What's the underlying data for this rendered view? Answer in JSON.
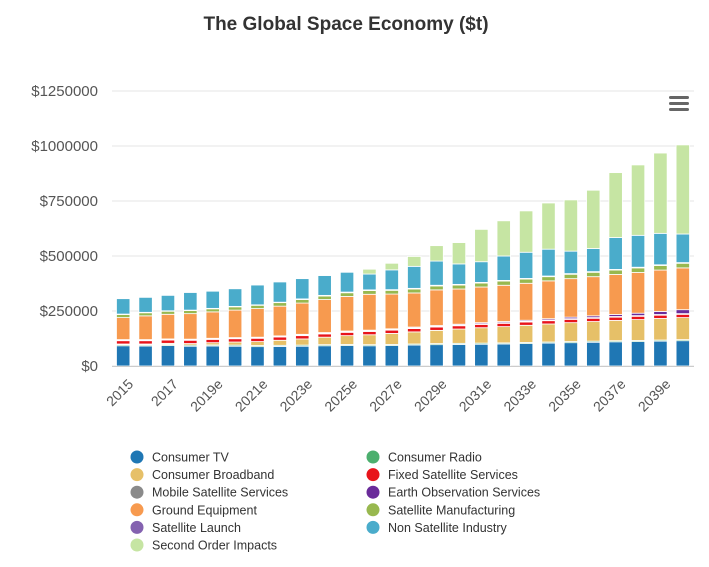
{
  "chart_data": {
    "type": "bar",
    "stacked": true,
    "title": "The Global Space Economy ($t)",
    "xlabel": "",
    "ylabel": "",
    "ylim": [
      0,
      1250000
    ],
    "yticks": [
      0,
      250000,
      500000,
      750000,
      1000000,
      1250000
    ],
    "ytick_labels": [
      "$0",
      "$250000",
      "$500000",
      "$750000",
      "$1000000",
      "$1250000"
    ],
    "grid": true,
    "legend": "bottom",
    "categories": [
      "2015",
      "2016",
      "2017",
      "2018",
      "2019e",
      "2020e",
      "2021e",
      "2022e",
      "2023e",
      "2024e",
      "2025e",
      "2026e",
      "2027e",
      "2028e",
      "2029e",
      "2030e",
      "2031e",
      "2032e",
      "2033e",
      "2034e",
      "2035e",
      "2036e",
      "2037e",
      "2038e",
      "2039e",
      "2040e"
    ],
    "xtick_labels": [
      "2015",
      "",
      "2017",
      "",
      "2019e",
      "",
      "2021e",
      "",
      "2023e",
      "",
      "2025e",
      "",
      "2027e",
      "",
      "2029e",
      "",
      "2031e",
      "",
      "2033e",
      "",
      "2035e",
      "",
      "2037e",
      "",
      "2039e",
      ""
    ],
    "series": [
      {
        "name": "Consumer TV",
        "color": "#1f77b4",
        "values": [
          92000,
          91000,
          93000,
          90000,
          91000,
          90000,
          88000,
          89000,
          90000,
          92000,
          93000,
          92000,
          93000,
          95000,
          97000,
          98000,
          99000,
          100000,
          102000,
          104000,
          106000,
          108000,
          110000,
          111000,
          113000,
          115000
        ]
      },
      {
        "name": "Consumer Radio",
        "color": "#4caf6e",
        "values": [
          5000,
          5000,
          5000,
          5000,
          5000,
          5000,
          5000,
          5000,
          5000,
          5000,
          5000,
          5000,
          5000,
          5000,
          5000,
          5000,
          5000,
          5000,
          5000,
          5000,
          5000,
          5000,
          5000,
          5000,
          5000,
          5000
        ]
      },
      {
        "name": "Consumer Broadband",
        "color": "#e6c068",
        "values": [
          3000,
          4000,
          5000,
          7000,
          10000,
          14000,
          18000,
          23000,
          28000,
          34000,
          40000,
          45000,
          50000,
          55000,
          60000,
          65000,
          70000,
          74000,
          78000,
          82000,
          86000,
          89000,
          92000,
          95000,
          98000,
          100000
        ]
      },
      {
        "name": "Fixed Satellite Services",
        "color": "#e8141b",
        "values": [
          15000,
          15000,
          15000,
          15000,
          15000,
          15000,
          15000,
          15000,
          15000,
          15000,
          15000,
          15000,
          15000,
          15000,
          15000,
          15000,
          15000,
          15000,
          15000,
          15000,
          15000,
          15000,
          15000,
          15000,
          15000,
          15000
        ]
      },
      {
        "name": "Mobile Satellite Services",
        "color": "#8a8a8a",
        "values": [
          3000,
          3000,
          3000,
          3000,
          3000,
          3000,
          3000,
          3000,
          3000,
          3000,
          3000,
          3000,
          3000,
          3000,
          3000,
          3000,
          3000,
          3000,
          3000,
          3000,
          3000,
          3000,
          3000,
          3000,
          3000,
          3000
        ]
      },
      {
        "name": "Earth Observation Services",
        "color": "#6a2b9a",
        "values": [
          2000,
          2000,
          2000,
          2000,
          2000,
          2000,
          2000,
          2000,
          3000,
          3000,
          3000,
          3000,
          3000,
          4000,
          4000,
          4000,
          5000,
          5000,
          5000,
          6000,
          7000,
          8000,
          9000,
          11000,
          14000,
          18000
        ]
      },
      {
        "name": "Ground Equipment",
        "color": "#f79a4f",
        "values": [
          100000,
          108000,
          112000,
          116000,
          120000,
          125000,
          130000,
          135000,
          142000,
          150000,
          157000,
          163000,
          158000,
          155000,
          162000,
          160000,
          162000,
          165000,
          168000,
          172000,
          175000,
          178000,
          182000,
          185000,
          188000,
          190000
        ]
      },
      {
        "name": "Satellite Manufacturing",
        "color": "#98b84f",
        "values": [
          14000,
          14000,
          14000,
          14000,
          14000,
          15000,
          15000,
          16000,
          16000,
          16000,
          17000,
          17000,
          17000,
          18000,
          18000,
          18000,
          18000,
          19000,
          19000,
          19000,
          20000,
          20000,
          20000,
          21000,
          21000,
          21000
        ]
      },
      {
        "name": "Satellite Launch",
        "color": "#8462b0",
        "values": [
          2000,
          2000,
          2000,
          2000,
          2000,
          2000,
          2000,
          2000,
          3000,
          3000,
          3000,
          3000,
          3000,
          3000,
          3000,
          3000,
          3000,
          3000,
          3000,
          3000,
          3000,
          3000,
          3000,
          3000,
          3000,
          3000
        ]
      },
      {
        "name": "Non Satellite Industry",
        "color": "#4aaccb",
        "values": [
          70000,
          68000,
          70000,
          80000,
          78000,
          80000,
          90000,
          92000,
          92000,
          90000,
          90000,
          72000,
          90000,
          100000,
          110000,
          93000,
          94000,
          111000,
          119000,
          122000,
          102000,
          105000,
          145000,
          145000,
          143000,
          130000
        ]
      },
      {
        "name": "Second Order Impacts",
        "color": "#c6e5a3",
        "values": [
          0,
          0,
          0,
          0,
          0,
          0,
          0,
          0,
          0,
          0,
          0,
          22000,
          30000,
          45000,
          70000,
          97000,
          147000,
          160000,
          188000,
          210000,
          233000,
          265000,
          295000,
          320000,
          365000,
          405000
        ]
      }
    ]
  },
  "menu": {
    "icon": "hamburger-menu-icon"
  }
}
